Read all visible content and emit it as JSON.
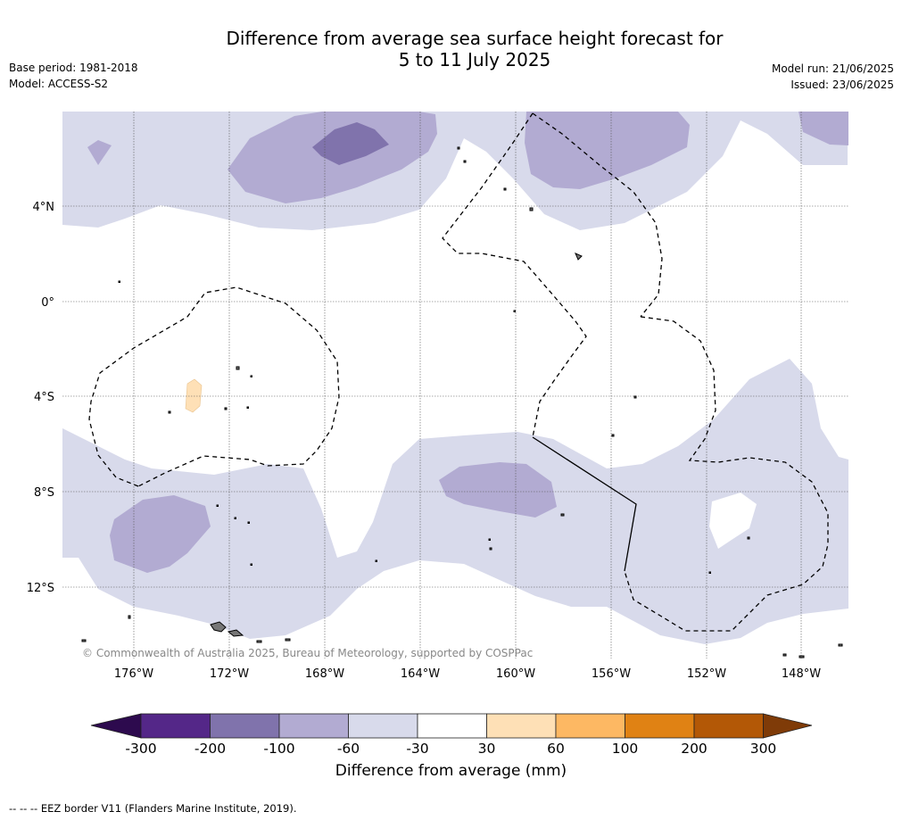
{
  "header": {
    "title_line1": "Difference from average sea surface height forecast for",
    "title_line2": "5 to 11 July 2025",
    "base_period": "Base period: 1981-2018",
    "model": "Model: ACCESS-S2",
    "model_run": "Model run: 21/06/2025",
    "issued": "Issued: 23/06/2025"
  },
  "map": {
    "copyright": "© Commonwealth of Australia 2025, Bureau of Meteorology, supported by COSPPac",
    "lat_labels": [
      "4°N",
      "0°",
      "4°S",
      "8°S",
      "12°S"
    ],
    "lon_labels": [
      "176°W",
      "172°W",
      "168°W",
      "164°W",
      "160°W",
      "156°W",
      "152°W",
      "148°W"
    ],
    "colors": {
      "below_300": "#2d0a4e",
      "m300_m200": "#542788",
      "m200_m100": "#8073ac",
      "m100_m60": "#b2abd2",
      "m60_m30": "#d8daeb",
      "m30_30": "#ffffff",
      "p30_60": "#fee0b6",
      "p60_100": "#fdb863",
      "p100_200": "#e08214",
      "p200_300": "#b35806",
      "above_300": "#7f3b08"
    }
  },
  "colorbar": {
    "ticks": [
      "-300",
      "-200",
      "-100",
      "-60",
      "-30",
      "30",
      "60",
      "100",
      "200",
      "300"
    ],
    "label": "Difference from average (mm)"
  },
  "footnote": "--  --  -- EEZ border V11 (Flanders Marine Institute, 2019)."
}
